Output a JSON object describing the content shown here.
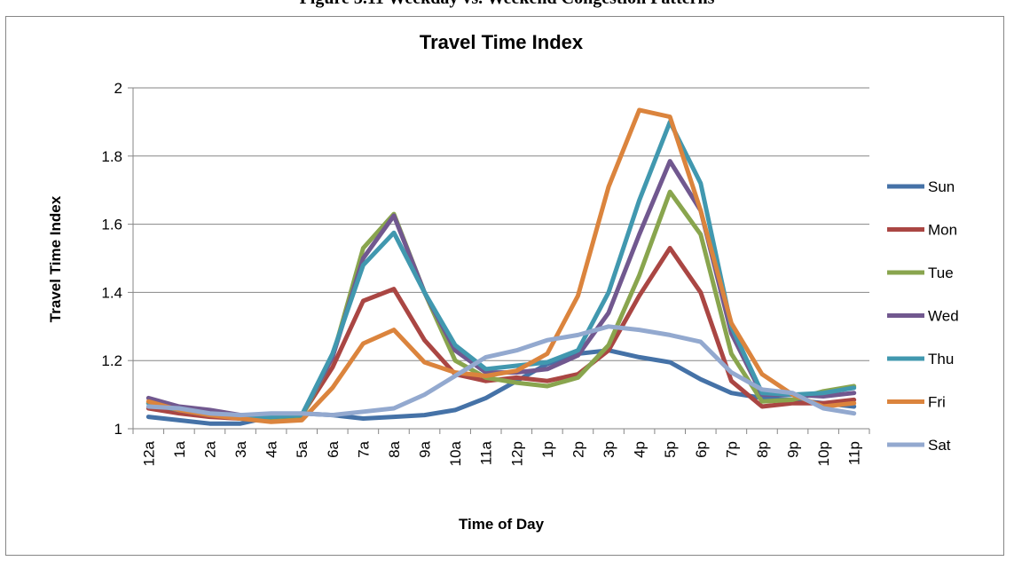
{
  "caption": "Figure 3.11 Weekday vs. Weekend Congestion Patterns",
  "chart_data": {
    "type": "line",
    "title": "Travel Time Index",
    "xlabel": "Time of Day",
    "ylabel": "Travel Time Index",
    "ylim": [
      1,
      2
    ],
    "yticks": [
      "1",
      "1.2",
      "1.4",
      "1.6",
      "1.8",
      "2"
    ],
    "ytick_values": [
      1,
      1.2,
      1.4,
      1.6,
      1.8,
      2
    ],
    "grid": true,
    "legend_position": "right",
    "categories": [
      "12a",
      "1a",
      "2a",
      "3a",
      "4a",
      "5a",
      "6a",
      "7a",
      "8a",
      "9a",
      "10a",
      "11a",
      "12p",
      "1p",
      "2p",
      "3p",
      "4p",
      "5p",
      "6p",
      "7p",
      "8p",
      "9p",
      "10p",
      "11p"
    ],
    "series": [
      {
        "name": "Sun",
        "color": "#4572A7",
        "values": [
          1.035,
          1.025,
          1.015,
          1.015,
          1.035,
          1.045,
          1.04,
          1.03,
          1.035,
          1.04,
          1.055,
          1.09,
          1.14,
          1.19,
          1.22,
          1.23,
          1.21,
          1.195,
          1.145,
          1.105,
          1.09,
          1.085,
          1.075,
          1.065
        ]
      },
      {
        "name": "Mon",
        "color": "#AA4643",
        "values": [
          1.06,
          1.045,
          1.035,
          1.03,
          1.03,
          1.04,
          1.18,
          1.375,
          1.41,
          1.26,
          1.16,
          1.14,
          1.15,
          1.14,
          1.16,
          1.23,
          1.39,
          1.53,
          1.4,
          1.14,
          1.065,
          1.075,
          1.075,
          1.085
        ]
      },
      {
        "name": "Tue",
        "color": "#89A54E",
        "values": [
          1.075,
          1.055,
          1.045,
          1.03,
          1.03,
          1.035,
          1.21,
          1.53,
          1.63,
          1.4,
          1.2,
          1.15,
          1.135,
          1.125,
          1.15,
          1.245,
          1.45,
          1.695,
          1.57,
          1.22,
          1.08,
          1.085,
          1.11,
          1.125
        ]
      },
      {
        "name": "Wed",
        "color": "#71588F",
        "values": [
          1.09,
          1.065,
          1.055,
          1.04,
          1.035,
          1.04,
          1.21,
          1.5,
          1.625,
          1.4,
          1.23,
          1.165,
          1.165,
          1.175,
          1.215,
          1.34,
          1.57,
          1.785,
          1.64,
          1.28,
          1.1,
          1.1,
          1.095,
          1.105
        ]
      },
      {
        "name": "Thu",
        "color": "#4198AF",
        "values": [
          1.075,
          1.055,
          1.04,
          1.035,
          1.035,
          1.04,
          1.22,
          1.48,
          1.575,
          1.4,
          1.245,
          1.175,
          1.185,
          1.195,
          1.23,
          1.4,
          1.67,
          1.9,
          1.72,
          1.3,
          1.105,
          1.1,
          1.105,
          1.12
        ]
      },
      {
        "name": "Fri",
        "color": "#DB843D",
        "values": [
          1.08,
          1.055,
          1.04,
          1.03,
          1.02,
          1.025,
          1.12,
          1.25,
          1.29,
          1.195,
          1.165,
          1.155,
          1.17,
          1.22,
          1.39,
          1.71,
          1.935,
          1.915,
          1.64,
          1.31,
          1.16,
          1.1,
          1.065,
          1.075
        ]
      },
      {
        "name": "Sat",
        "color": "#93A9CF",
        "values": [
          1.065,
          1.06,
          1.045,
          1.04,
          1.045,
          1.045,
          1.04,
          1.05,
          1.06,
          1.1,
          1.155,
          1.21,
          1.23,
          1.26,
          1.275,
          1.3,
          1.29,
          1.275,
          1.255,
          1.165,
          1.115,
          1.105,
          1.06,
          1.045
        ]
      }
    ]
  }
}
